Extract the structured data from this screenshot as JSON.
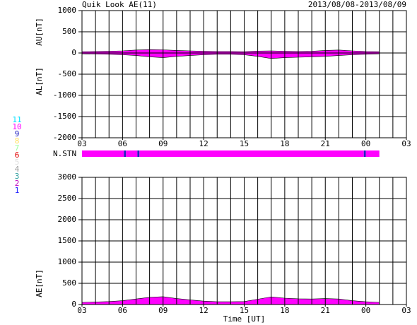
{
  "title": "Quik Look AE(11)",
  "date_range": "2013/08/08-2013/08/09",
  "chart_data": [
    {
      "type": "area",
      "ylabel_upper": "AU[nT]",
      "ylabel_lower": "AL[nT]",
      "x": [
        0,
        1,
        2,
        3,
        4,
        5,
        6,
        7,
        8,
        9,
        10,
        11,
        12,
        13,
        14,
        15,
        16,
        17,
        18,
        19,
        20,
        21,
        22
      ],
      "series": [
        {
          "name": "AU",
          "color": "#ff00ff",
          "values": [
            30,
            35,
            40,
            50,
            70,
            80,
            75,
            60,
            50,
            40,
            35,
            35,
            30,
            45,
            50,
            40,
            35,
            40,
            60,
            70,
            50,
            35,
            30
          ]
        },
        {
          "name": "AL",
          "color": "#ff00ff",
          "values": [
            -20,
            -25,
            -30,
            -40,
            -60,
            -90,
            -110,
            -80,
            -60,
            -40,
            -30,
            -30,
            -40,
            -80,
            -130,
            -110,
            -100,
            -90,
            -80,
            -60,
            -40,
            -30,
            -20
          ]
        }
      ],
      "xlim": [
        0,
        24
      ],
      "xticks": [
        {
          "value": 0,
          "label": "03"
        },
        {
          "value": 3,
          "label": "06"
        },
        {
          "value": 6,
          "label": "09"
        },
        {
          "value": 9,
          "label": "12"
        },
        {
          "value": 12,
          "label": "15"
        },
        {
          "value": 15,
          "label": "18"
        },
        {
          "value": 18,
          "label": "21"
        },
        {
          "value": 21,
          "label": "00"
        },
        {
          "value": 24,
          "label": "03"
        }
      ],
      "x_minor_step": 1,
      "ylim": [
        -2000,
        1000
      ],
      "yticks": [
        1000,
        500,
        0,
        -500,
        -1000,
        -1500,
        -2000
      ],
      "grid": true
    },
    {
      "type": "area",
      "ylabel": "AE[nT]",
      "xlabel": "Time [UT]",
      "x": [
        0,
        1,
        2,
        3,
        4,
        5,
        6,
        7,
        8,
        9,
        10,
        11,
        12,
        13,
        14,
        15,
        16,
        17,
        18,
        19,
        20,
        21,
        22
      ],
      "series": [
        {
          "name": "AE",
          "color": "#ff00ff",
          "values": [
            50,
            60,
            70,
            90,
            130,
            170,
            185,
            140,
            110,
            80,
            65,
            65,
            70,
            125,
            180,
            150,
            135,
            130,
            140,
            130,
            90,
            65,
            50
          ]
        }
      ],
      "xlim": [
        0,
        24
      ],
      "xticks": [
        {
          "value": 0,
          "label": "03"
        },
        {
          "value": 3,
          "label": "06"
        },
        {
          "value": 6,
          "label": "09"
        },
        {
          "value": 9,
          "label": "12"
        },
        {
          "value": 12,
          "label": "15"
        },
        {
          "value": 15,
          "label": "18"
        },
        {
          "value": 18,
          "label": "21"
        },
        {
          "value": 21,
          "label": "00"
        },
        {
          "value": 24,
          "label": "03"
        }
      ],
      "x_minor_step": 1,
      "ylim": [
        0,
        3000
      ],
      "yticks": [
        0,
        500,
        1000,
        1500,
        2000,
        2500,
        3000
      ],
      "grid": true
    }
  ],
  "station_count": {
    "label": "N.STN",
    "start": [
      0,
      3.1,
      3.25,
      4.1,
      4.25,
      20.85,
      21.0
    ],
    "count": [
      10,
      9,
      10,
      9,
      10,
      9,
      10
    ],
    "end": 22
  },
  "legend": {
    "levels": [
      11,
      10,
      9,
      8,
      7,
      6,
      5,
      4,
      3,
      2,
      1
    ],
    "colors": [
      "#00e0ff",
      "#ff00ff",
      "#2020c0",
      "#ffe060",
      "#a0ffa0",
      "#e00000",
      "#e0e0e0",
      "#a0a0a0",
      "#30a0a0",
      "#c000c0",
      "#2020ff"
    ]
  }
}
